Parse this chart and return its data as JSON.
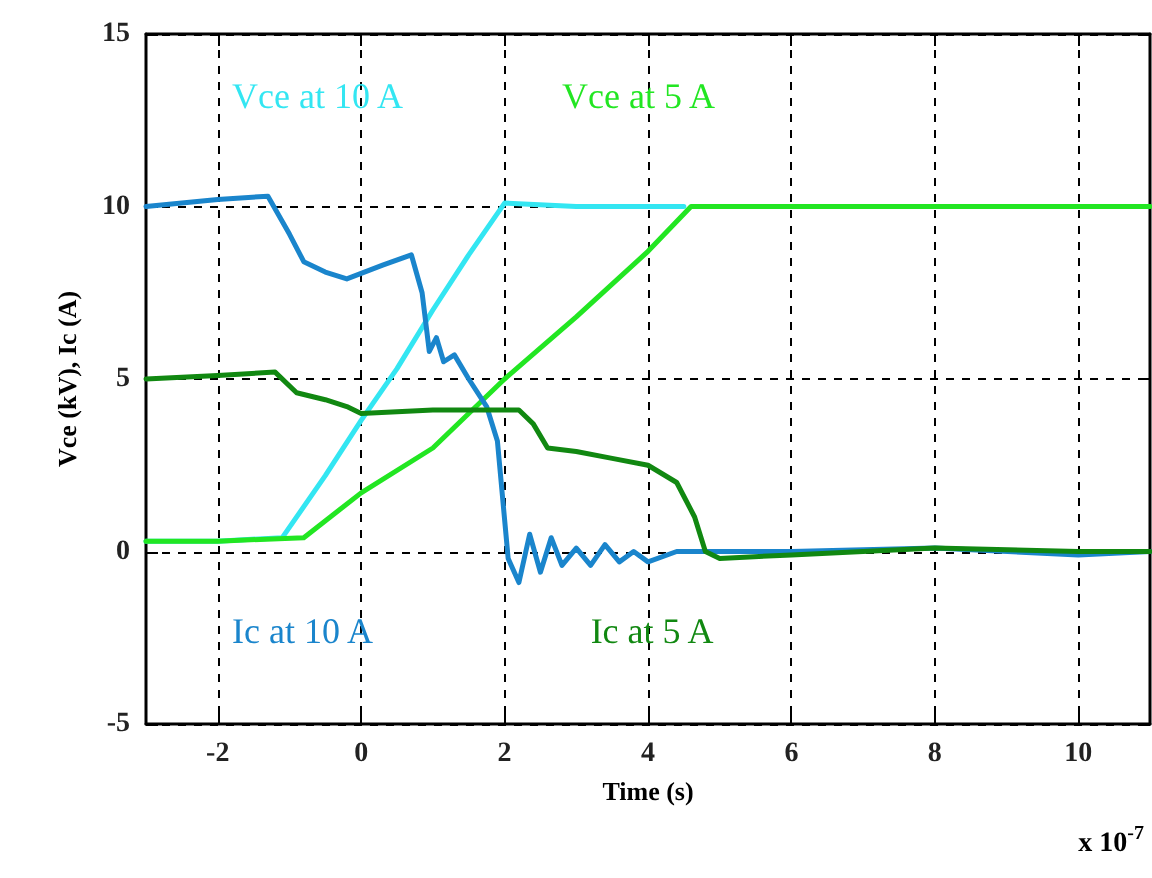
{
  "chart_data": {
    "type": "line",
    "xlabel": "Time (s)",
    "ylabel": "Vce (kV), Ic (A)",
    "annotations": [
      "x 10$^{-7}$"
    ],
    "xlim": [
      -3,
      11
    ],
    "xticks": [
      -2,
      0,
      2,
      4,
      6,
      8,
      10
    ],
    "ylim": [
      -5,
      15
    ],
    "yticks": [
      -5,
      0,
      5,
      10,
      15
    ],
    "grid": true,
    "legend": false,
    "marker": "none",
    "line_style": "solid",
    "series": [
      {
        "name": "Vce at 10 A",
        "color": "#33e6f2",
        "x": [
          -3,
          -2,
          -1.1,
          -0.5,
          0,
          0.5,
          1,
          1.5,
          2,
          3,
          4,
          4.5
        ],
        "values": [
          0.3,
          0.3,
          0.4,
          2.2,
          3.8,
          5.3,
          7,
          8.6,
          10.1,
          10,
          10,
          10
        ]
      },
      {
        "name": "Vce at 5 A",
        "color": "#22e622",
        "x": [
          -3,
          -2,
          -0.8,
          0,
          1,
          2,
          3,
          4,
          4.6,
          6,
          8,
          10,
          11
        ],
        "values": [
          0.3,
          0.3,
          0.4,
          1.7,
          3,
          5,
          6.8,
          8.7,
          10,
          10,
          10,
          10,
          10
        ]
      },
      {
        "name": "Ic at 10 A",
        "color": "#1a85cc",
        "x": [
          -3,
          -2,
          -1.3,
          -1,
          -0.8,
          -0.5,
          -0.2,
          0.3,
          0.7,
          0.85,
          0.95,
          1.05,
          1.15,
          1.3,
          1.5,
          1.75,
          1.9,
          2.05,
          2.2,
          2.35,
          2.5,
          2.65,
          2.8,
          3,
          3.2,
          3.4,
          3.6,
          3.8,
          4,
          4.4,
          5,
          6,
          8,
          10,
          11
        ],
        "values": [
          10,
          10.2,
          10.3,
          9.2,
          8.4,
          8.1,
          7.9,
          8.3,
          8.6,
          7.5,
          5.8,
          6.2,
          5.5,
          5.7,
          5,
          4.2,
          3.2,
          -0.2,
          -0.9,
          0.5,
          -0.6,
          0.4,
          -0.4,
          0.1,
          -0.4,
          0.2,
          -0.3,
          0,
          -0.3,
          0,
          0,
          0,
          0.1,
          -0.1,
          0
        ]
      },
      {
        "name": "Ic at 5 A",
        "color": "#118811",
        "x": [
          -3,
          -2,
          -1.2,
          -0.9,
          -0.5,
          -0.2,
          0,
          1,
          1.5,
          2.2,
          2.4,
          2.6,
          3,
          3.5,
          4,
          4.4,
          4.65,
          4.8,
          5,
          6,
          8,
          10,
          11
        ],
        "values": [
          5,
          5.1,
          5.2,
          4.6,
          4.4,
          4.2,
          4,
          4.1,
          4.1,
          4.1,
          3.7,
          3,
          2.9,
          2.7,
          2.5,
          2,
          1,
          0,
          -0.2,
          -0.1,
          0.1,
          0,
          0
        ]
      }
    ]
  }
}
